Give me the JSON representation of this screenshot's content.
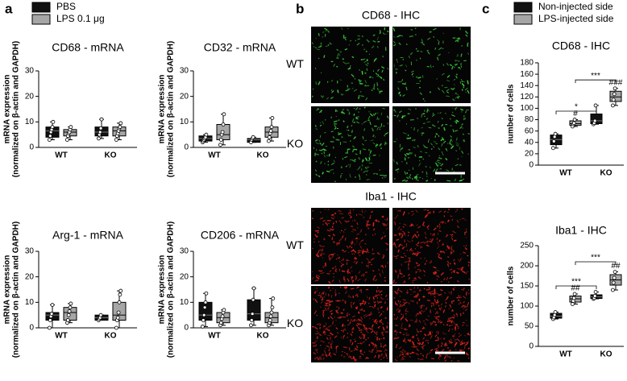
{
  "panel_a": {
    "label": "a",
    "legend": [
      {
        "label": "PBS",
        "color": "#111111"
      },
      {
        "label": "LPS 0.1 μg",
        "color": "#a6a6a6"
      }
    ]
  },
  "panel_b": {
    "label": "b",
    "rows": [
      {
        "title": "CD68 - IHC",
        "color": "#3fd23f",
        "row_labels": [
          "WT",
          "KO"
        ]
      },
      {
        "title": "Iba1 - IHC",
        "color": "#e8251e",
        "row_labels": [
          "WT",
          "KO"
        ]
      }
    ]
  },
  "panel_c": {
    "label": "c",
    "legend": [
      {
        "label": "Non-injected side",
        "color": "#111111"
      },
      {
        "label": "LPS-injected side",
        "color": "#a6a6a6"
      }
    ]
  },
  "chart_data": [
    {
      "type": "box",
      "title": "CD68 - mRNA",
      "ylabel": [
        "mRNA expression",
        "(normalized on β-actin and GAPDH)"
      ],
      "categories": [
        "WT",
        "KO"
      ],
      "ylim": [
        0,
        30
      ],
      "yticks": [
        0,
        10,
        20,
        30
      ],
      "series": [
        {
          "color": "#111111",
          "values": [
            {
              "min": 3,
              "q1": 4,
              "median": 6.5,
              "q3": 8,
              "max": 10,
              "points": [
                3,
                4.5,
                6,
                7,
                8,
                10
              ]
            },
            {
              "min": 3.5,
              "q1": 4.5,
              "median": 6,
              "q3": 8,
              "max": 11,
              "points": [
                3.5,
                5,
                6,
                7.5,
                11
              ]
            }
          ]
        },
        {
          "color": "#a6a6a6",
          "values": [
            {
              "min": 3,
              "q1": 4.5,
              "median": 6,
              "q3": 7,
              "max": 8,
              "points": [
                3,
                4.5,
                5.5,
                6,
                7,
                8
              ]
            },
            {
              "min": 3,
              "q1": 4.5,
              "median": 6.5,
              "q3": 8,
              "max": 9.5,
              "points": [
                3,
                4.5,
                5.5,
                6.5,
                7.5,
                8,
                9.5
              ]
            }
          ]
        }
      ]
    },
    {
      "type": "box",
      "title": "CD32 - mRNA",
      "ylabel": [
        "mRNA expression",
        "(normalized on β-actin and GAPDH)"
      ],
      "categories": [
        "WT",
        "KO"
      ],
      "ylim": [
        0,
        30
      ],
      "yticks": [
        0,
        10,
        20,
        30
      ],
      "series": [
        {
          "color": "#111111",
          "values": [
            {
              "min": 2,
              "q1": 2.5,
              "median": 3.5,
              "q3": 4.5,
              "max": 5,
              "points": [
                2,
                2.5,
                3,
                3.5,
                4,
                5
              ]
            },
            {
              "min": 2,
              "q1": 2,
              "median": 3,
              "q3": 3.5,
              "max": 4,
              "points": [
                2,
                3,
                3.5,
                4
              ]
            }
          ]
        },
        {
          "color": "#a6a6a6",
          "values": [
            {
              "min": 1,
              "q1": 3,
              "median": 5,
              "q3": 9,
              "max": 13,
              "points": [
                1,
                3,
                5,
                6,
                9,
                13
              ]
            },
            {
              "min": 2.5,
              "q1": 4,
              "median": 6,
              "q3": 8,
              "max": 11.5,
              "points": [
                2.5,
                4,
                5.5,
                6.5,
                8,
                11.5
              ]
            }
          ]
        }
      ]
    },
    {
      "type": "box",
      "title": "Arg-1 - mRNA",
      "ylabel": [
        "mRNA expression",
        "(normalized on β-actin and GAPDH)"
      ],
      "categories": [
        "WT",
        "KO"
      ],
      "ylim": [
        0,
        30
      ],
      "yticks": [
        0,
        10,
        20,
        30
      ],
      "series": [
        {
          "color": "#111111",
          "values": [
            {
              "min": 0,
              "q1": 3,
              "median": 5,
              "q3": 6,
              "max": 9,
              "points": [
                0,
                3,
                4.5,
                5.5,
                9
              ]
            },
            {
              "min": 3,
              "q1": 3,
              "median": 4,
              "q3": 5,
              "max": 5,
              "points": [
                3,
                3.5,
                4,
                5
              ]
            }
          ]
        },
        {
          "color": "#a6a6a6",
          "values": [
            {
              "min": 2,
              "q1": 3,
              "median": 6,
              "q3": 8,
              "max": 9.5,
              "points": [
                2,
                3,
                5,
                6.5,
                8,
                9.5
              ]
            },
            {
              "min": 0,
              "q1": 3,
              "median": 5,
              "q3": 10,
              "max": 14.5,
              "points": [
                0,
                3,
                4,
                6,
                10,
                13,
                14.5
              ]
            }
          ]
        }
      ]
    },
    {
      "type": "box",
      "title": "CD206 - mRNA",
      "ylabel": [
        "mRNA expression",
        "(normalized on β-actin and GAPDH)"
      ],
      "categories": [
        "WT",
        "KO"
      ],
      "ylim": [
        0,
        30
      ],
      "yticks": [
        0,
        10,
        20,
        30
      ],
      "series": [
        {
          "color": "#111111",
          "values": [
            {
              "min": 0.5,
              "q1": 3,
              "median": 5,
              "q3": 10,
              "max": 13.5,
              "points": [
                0.5,
                3,
                5,
                8,
                10,
                13.5
              ]
            },
            {
              "min": 1,
              "q1": 3,
              "median": 5.5,
              "q3": 11,
              "max": 15.5,
              "points": [
                1,
                3,
                5.5,
                11,
                15.5
              ]
            }
          ]
        },
        {
          "color": "#a6a6a6",
          "values": [
            {
              "min": 1,
              "q1": 2,
              "median": 4,
              "q3": 6,
              "max": 7,
              "points": [
                1,
                2,
                3.5,
                4.5,
                6,
                7
              ]
            },
            {
              "min": 1,
              "q1": 2,
              "median": 4,
              "q3": 6,
              "max": 11.5,
              "points": [
                1,
                2,
                3,
                4.5,
                6,
                8,
                11.5
              ]
            }
          ]
        }
      ]
    },
    {
      "type": "box",
      "title": "CD68 - IHC",
      "ylabel": [
        "number of cells"
      ],
      "categories": [
        "WT",
        "KO"
      ],
      "ylim": [
        0,
        180
      ],
      "yticks": [
        0,
        20,
        40,
        60,
        80,
        100,
        120,
        140,
        160,
        180
      ],
      "series": [
        {
          "color": "#111111",
          "values": [
            {
              "min": 30,
              "q1": 36,
              "median": 45,
              "q3": 53,
              "max": 55,
              "points": [
                30,
                42,
                50,
                55
              ]
            },
            {
              "min": 72,
              "q1": 73,
              "median": 78,
              "q3": 90,
              "max": 105,
              "points": [
                72,
                74,
                78,
                105
              ]
            }
          ]
        },
        {
          "color": "#a6a6a6",
          "values": [
            {
              "min": 68,
              "q1": 70,
              "median": 73,
              "q3": 78,
              "max": 80,
              "points": [
                68,
                72,
                74,
                80
              ]
            },
            {
              "min": 105,
              "q1": 112,
              "median": 120,
              "q3": 130,
              "max": 135,
              "points": [
                105,
                115,
                125,
                135
              ]
            }
          ]
        }
      ],
      "annotations": [
        {
          "series": 1,
          "category": 0,
          "label": "#"
        },
        {
          "series": 1,
          "category": 1,
          "label": "###"
        }
      ],
      "brackets": [
        {
          "from": [
            0,
            0
          ],
          "to": [
            1,
            0
          ],
          "y": 95,
          "label": "*"
        },
        {
          "from": [
            0,
            1
          ],
          "to": [
            1,
            1
          ],
          "y": 150,
          "label": "***"
        }
      ]
    },
    {
      "type": "box",
      "title": "Iba1 - IHC",
      "ylabel": [
        "number of cells"
      ],
      "categories": [
        "WT",
        "KO"
      ],
      "ylim": [
        0,
        250
      ],
      "yticks": [
        0,
        50,
        100,
        150,
        200,
        250
      ],
      "series": [
        {
          "color": "#111111",
          "values": [
            {
              "min": 68,
              "q1": 70,
              "median": 75,
              "q3": 82,
              "max": 85,
              "points": [
                68,
                72,
                78,
                85
              ]
            },
            {
              "min": 118,
              "q1": 119,
              "median": 123,
              "q3": 128,
              "max": 135,
              "points": [
                118,
                120,
                125,
                135
              ]
            }
          ]
        },
        {
          "color": "#a6a6a6",
          "values": [
            {
              "min": 105,
              "q1": 110,
              "median": 118,
              "q3": 125,
              "max": 130,
              "points": [
                105,
                113,
                120,
                130
              ]
            },
            {
              "min": 140,
              "q1": 152,
              "median": 165,
              "q3": 178,
              "max": 185,
              "points": [
                140,
                158,
                170,
                185
              ]
            }
          ]
        }
      ],
      "annotations": [
        {
          "series": 1,
          "category": 0,
          "label": "##"
        },
        {
          "series": 1,
          "category": 1,
          "label": "##"
        }
      ],
      "brackets": [
        {
          "from": [
            0,
            0
          ],
          "to": [
            1,
            0
          ],
          "y": 150,
          "label": "***"
        },
        {
          "from": [
            0,
            1
          ],
          "to": [
            1,
            1
          ],
          "y": 210,
          "label": "***"
        }
      ]
    }
  ]
}
